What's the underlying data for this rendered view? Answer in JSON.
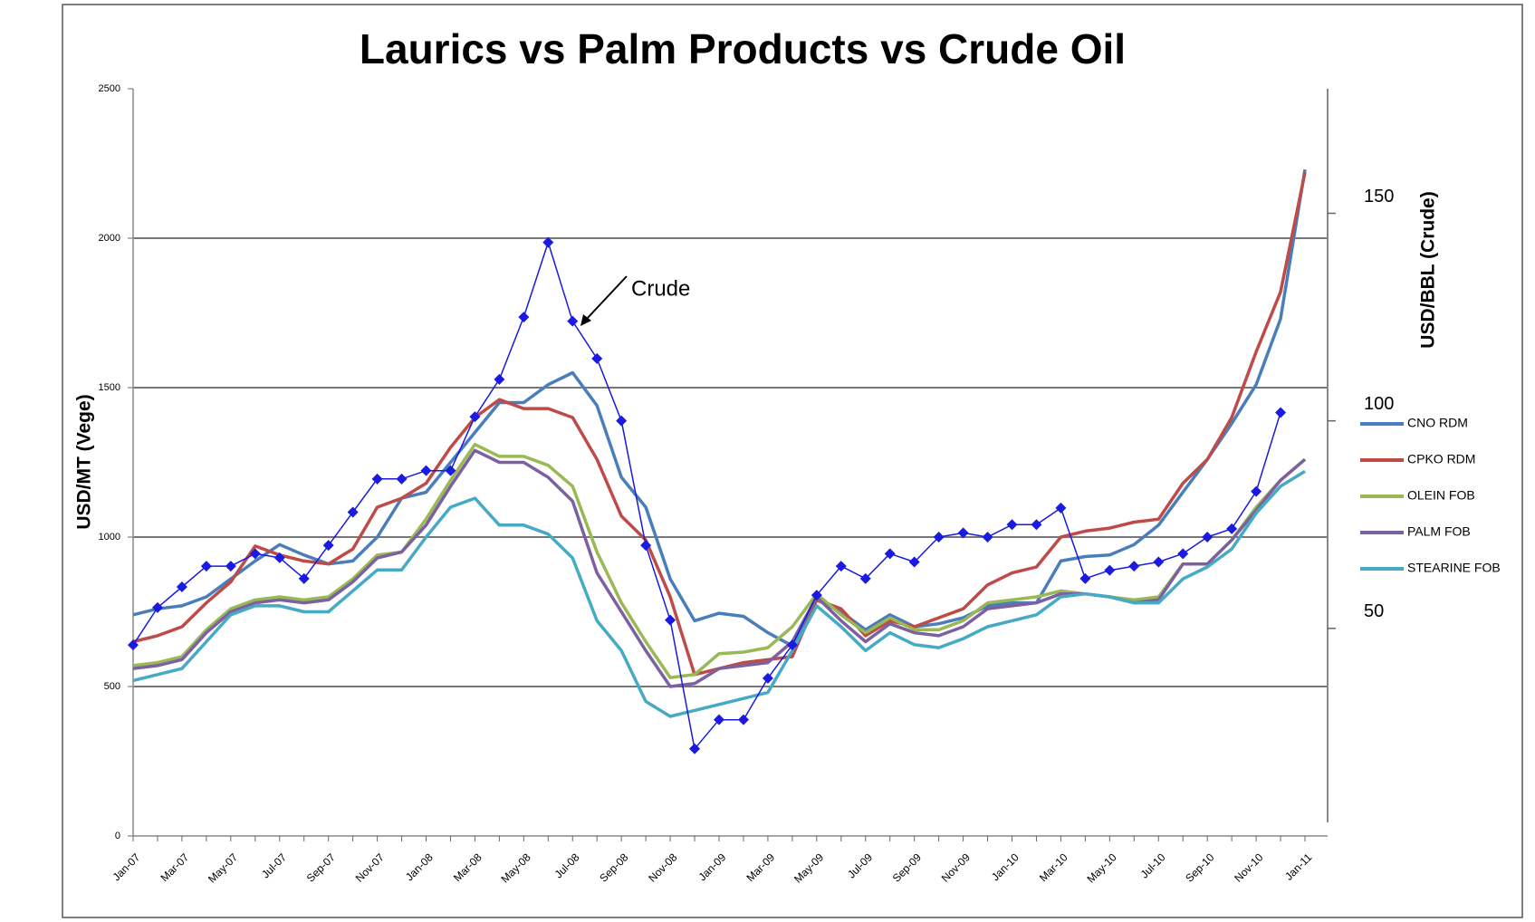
{
  "chart_data": {
    "type": "line",
    "title": "Laurics vs Palm Products vs Crude Oil",
    "y_label": "USD/MT (Vege)",
    "y2_label": "USD/BBL (Crude)",
    "annotation": "Crude",
    "categories": [
      "Jan-07",
      null,
      "Mar-07",
      null,
      "May-07",
      null,
      "Jul-07",
      null,
      "Sep-07",
      null,
      "Nov-07",
      null,
      "Jan-08",
      null,
      "Mar-08",
      null,
      "May-08",
      null,
      "Jul-08",
      null,
      "Sep-08",
      null,
      "Nov-08",
      null,
      "Jan-09",
      null,
      "Mar-09",
      null,
      "May-09",
      null,
      "Jul-09",
      null,
      "Sep-09",
      null,
      "Nov-09",
      null,
      "Jan-10",
      null,
      "Mar-10",
      null,
      "May-10",
      null,
      "Jul-10",
      null,
      "Sep-10",
      null,
      "Nov-10",
      null,
      "Jan-11"
    ],
    "ylim": [
      0,
      2500
    ],
    "yticks": [
      0,
      500,
      1000,
      1500,
      2000,
      2500
    ],
    "y2lim": [
      0,
      180
    ],
    "y2ticks": [
      50,
      100,
      150
    ],
    "grid": true,
    "legend": "right",
    "series": [
      {
        "name": "CNO RDM",
        "color": "#4a7ebb",
        "values": [
          740,
          760,
          770,
          800,
          860,
          920,
          975,
          940,
          910,
          920,
          1000,
          1130,
          1150,
          1250,
          1350,
          1450,
          1450,
          1510,
          1550,
          1440,
          1200,
          1100,
          860,
          720,
          745,
          735,
          680,
          636,
          790,
          750,
          690,
          740,
          700,
          710,
          730,
          770,
          780,
          780,
          920,
          935,
          940,
          975,
          1040,
          1150,
          1260,
          1380,
          1510,
          1730,
          2230
        ]
      },
      {
        "name": "CPKO RDM",
        "color": "#be4b48",
        "values": [
          650,
          670,
          700,
          780,
          850,
          970,
          940,
          920,
          910,
          960,
          1100,
          1130,
          1180,
          1300,
          1400,
          1460,
          1430,
          1430,
          1400,
          1260,
          1070,
          990,
          800,
          540,
          560,
          580,
          590,
          600,
          790,
          760,
          670,
          720,
          700,
          730,
          760,
          840,
          880,
          900,
          1000,
          1020,
          1030,
          1050,
          1060,
          1180,
          1260,
          1400,
          1620,
          1820,
          2220
        ]
      },
      {
        "name": "OLEIN FOB",
        "color": "#98b954",
        "values": [
          570,
          580,
          600,
          690,
          760,
          790,
          800,
          790,
          800,
          860,
          940,
          950,
          1060,
          1190,
          1310,
          1270,
          1270,
          1240,
          1170,
          950,
          780,
          650,
          530,
          540,
          610,
          615,
          630,
          700,
          810,
          740,
          680,
          730,
          690,
          690,
          720,
          780,
          790,
          800,
          820,
          810,
          800,
          790,
          800,
          910,
          910,
          990,
          1100,
          1190,
          1260
        ]
      },
      {
        "name": "PALM FOB",
        "color": "#7d60a0",
        "values": [
          560,
          570,
          590,
          680,
          750,
          780,
          790,
          780,
          790,
          850,
          930,
          950,
          1040,
          1170,
          1290,
          1250,
          1250,
          1200,
          1120,
          880,
          750,
          620,
          500,
          510,
          560,
          570,
          580,
          650,
          800,
          720,
          650,
          710,
          680,
          670,
          700,
          760,
          770,
          780,
          810,
          810,
          800,
          780,
          790,
          910,
          910,
          990,
          1090,
          1190,
          1260
        ]
      },
      {
        "name": "STEARINE FOB",
        "color": "#46aac5",
        "values": [
          520,
          540,
          560,
          650,
          740,
          770,
          770,
          750,
          750,
          820,
          890,
          890,
          1000,
          1100,
          1130,
          1040,
          1040,
          1010,
          930,
          720,
          620,
          450,
          400,
          420,
          440,
          460,
          480,
          620,
          770,
          700,
          620,
          680,
          640,
          630,
          660,
          700,
          720,
          740,
          800,
          810,
          800,
          780,
          780,
          860,
          900,
          960,
          1080,
          1170,
          1220
        ]
      },
      {
        "name": "Crude",
        "color": "#1a1ae0",
        "axis": "y2",
        "marker": "diamond",
        "legend": false,
        "values": [
          46,
          55,
          60,
          65,
          65,
          68,
          67,
          62,
          70,
          78,
          86,
          86,
          88,
          88,
          101,
          110,
          125,
          143,
          124,
          115,
          100,
          70,
          52,
          21,
          28,
          28,
          38,
          46,
          58,
          65,
          62,
          68,
          66,
          72,
          73,
          72,
          75,
          75,
          79,
          62,
          64,
          65,
          66,
          68,
          72,
          74,
          83,
          102,
          null
        ]
      }
    ]
  }
}
